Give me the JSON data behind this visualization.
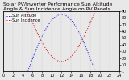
{
  "title": "Solar PV/Inverter Performance Sun Altitude Angle & Sun Incidence Angle on PV Panels",
  "blue_label": "Sun Altitude",
  "red_label": "Sun Incidence",
  "blue_color": "#0000cc",
  "red_color": "#cc0000",
  "background_color": "#e8e8e8",
  "grid_color": "#bbbbbb",
  "ylim_left": [
    0,
    90
  ],
  "ylim_right": [
    0,
    90
  ],
  "right_ticks": [
    90,
    80,
    70,
    60,
    50,
    40,
    30,
    20,
    10,
    1
  ],
  "xlim": [
    0,
    24
  ],
  "x_ticks": [
    0,
    2,
    4,
    6,
    8,
    10,
    12,
    14,
    16,
    18,
    20,
    22,
    24
  ],
  "title_fontsize": 4.5,
  "legend_fontsize": 3.5,
  "tick_fontsize": 3.5,
  "sunrise": 5,
  "sunset": 19,
  "altitude_peak": 85,
  "incidence_min": 15,
  "incidence_flat": 90
}
